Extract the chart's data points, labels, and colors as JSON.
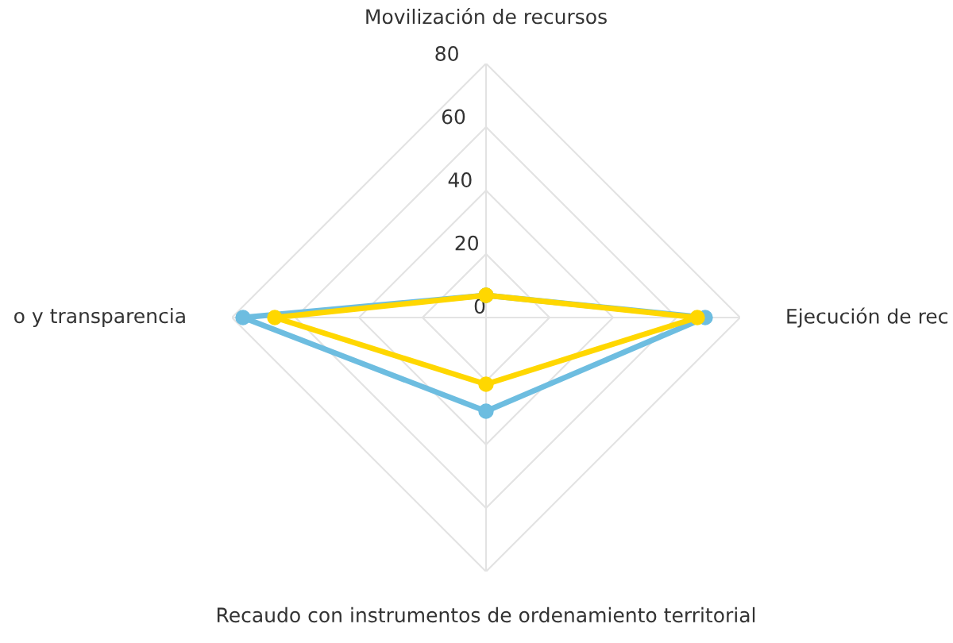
{
  "chart_data": {
    "type": "radar",
    "categories": [
      "Movilización de recursos",
      "Ejecución de rec",
      "Recaudo con instrumentos de ordenamiento territorial",
      "o y transparencia"
    ],
    "series": [
      {
        "color": "#6dbde0",
        "values": [
          7,
          69,
          29.5,
          76.5
        ]
      },
      {
        "color": "#ffd700",
        "values": [
          7,
          66.5,
          21,
          66.5
        ]
      }
    ],
    "ylim": [
      0,
      80
    ],
    "yticks": [
      0,
      20,
      40,
      60,
      80
    ],
    "marker": "circle",
    "grid": true,
    "legend": false
  }
}
